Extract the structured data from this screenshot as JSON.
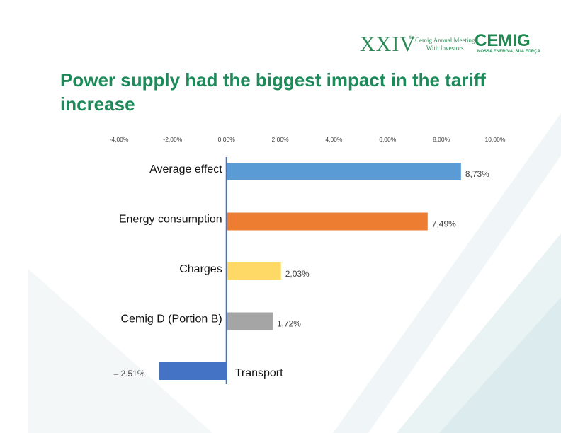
{
  "header": {
    "edition": "XXIV",
    "edition_sup": "th",
    "meeting_line1": "Cemig Annual Meeting",
    "meeting_line2": "With Investors",
    "brand": "CEMIG",
    "brand_tagline": "NOSSA ENERGIA, SUA FORÇA"
  },
  "title": "Power supply had the biggest impact in the tariff increase",
  "colors": {
    "title": "#1e8a5a",
    "axis": "#4472c4"
  },
  "chart_data": {
    "type": "bar",
    "orientation": "horizontal",
    "x_ticks": [
      "-4,00%",
      "-2,00%",
      "0,00%",
      "2,00%",
      "4,00%",
      "6,00%",
      "8,00%",
      "10,00%"
    ],
    "xlim": [
      -4,
      10
    ],
    "categories": [
      "Average effect",
      "Energy consumption",
      "Charges",
      "Cemig D (Portion B)",
      "Transport"
    ],
    "values": [
      8.73,
      7.49,
      2.03,
      1.72,
      -2.51
    ],
    "data_labels": [
      "8,73%",
      "7,49%",
      "2,03%",
      "1,72%",
      "– 2.51%"
    ],
    "bar_colors": [
      "#5b9bd5",
      "#ed7d31",
      "#ffd966",
      "#a5a5a5",
      "#4472c4"
    ],
    "grid": false,
    "legend": "none"
  }
}
